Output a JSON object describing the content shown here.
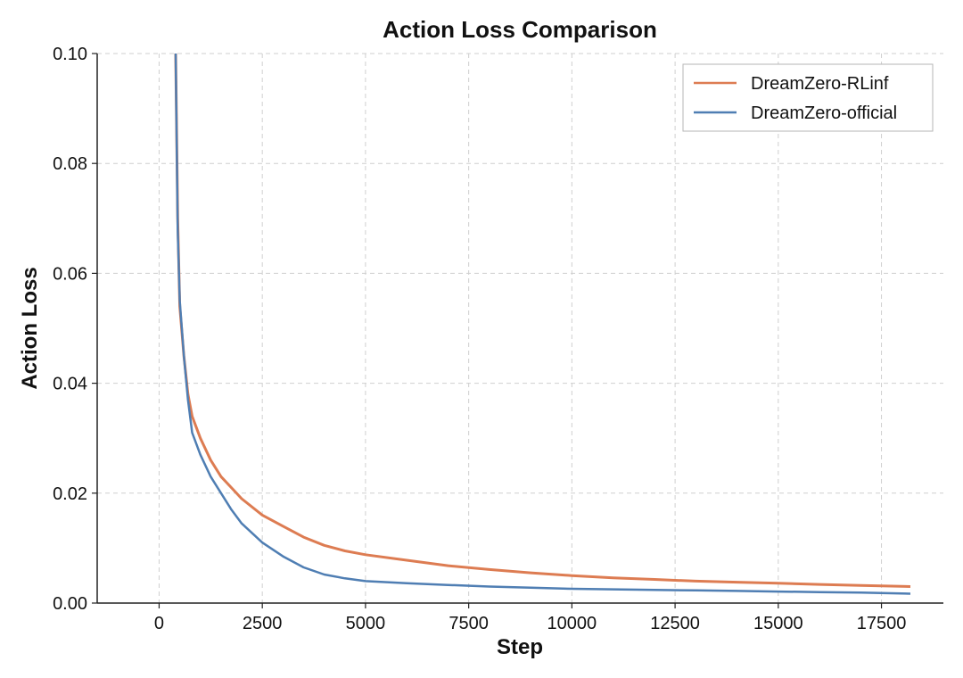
{
  "chart_data": {
    "type": "line",
    "title": "Action Loss Comparison",
    "xlabel": "Step",
    "ylabel": "Action Loss",
    "xlim": [
      -1500,
      19000
    ],
    "ylim": [
      0,
      0.1
    ],
    "xticks": [
      0,
      2500,
      5000,
      7500,
      10000,
      12500,
      15000,
      17500
    ],
    "xtick_labels": [
      "0",
      "2500",
      "5000",
      "7500",
      "10000",
      "12500",
      "15000",
      "17500"
    ],
    "yticks": [
      0,
      0.02,
      0.04,
      0.06,
      0.08,
      0.1
    ],
    "ytick_labels": [
      "0.00",
      "0.02",
      "0.04",
      "0.06",
      "0.08",
      "0.10"
    ],
    "grid": true,
    "legend_position": "top-right",
    "series": [
      {
        "name": "DreamZero-RLinf",
        "color": "#dd7c52",
        "x": [
          400,
          450,
          500,
          600,
          700,
          800,
          1000,
          1250,
          1500,
          1750,
          2000,
          2500,
          3000,
          3500,
          4000,
          4500,
          5000,
          6000,
          7000,
          8000,
          9000,
          10000,
          11000,
          12000,
          13000,
          14000,
          15000,
          16000,
          17000,
          18200
        ],
        "y": [
          0.1,
          0.07,
          0.054,
          0.045,
          0.038,
          0.034,
          0.03,
          0.026,
          0.023,
          0.021,
          0.019,
          0.016,
          0.014,
          0.012,
          0.0105,
          0.0095,
          0.0088,
          0.0078,
          0.0068,
          0.0061,
          0.0055,
          0.005,
          0.0046,
          0.0043,
          0.004,
          0.0038,
          0.0036,
          0.0034,
          0.0032,
          0.003
        ]
      },
      {
        "name": "DreamZero-official",
        "color": "#4f7eb3",
        "x": [
          400,
          450,
          500,
          600,
          700,
          800,
          1000,
          1250,
          1500,
          1750,
          2000,
          2500,
          3000,
          3500,
          4000,
          4500,
          5000,
          6000,
          7000,
          8000,
          9000,
          10000,
          11000,
          12000,
          13000,
          14000,
          15000,
          16000,
          17000,
          18200
        ],
        "y": [
          0.1,
          0.068,
          0.055,
          0.045,
          0.037,
          0.031,
          0.027,
          0.023,
          0.02,
          0.017,
          0.0145,
          0.011,
          0.0085,
          0.0065,
          0.0052,
          0.0045,
          0.004,
          0.0036,
          0.0033,
          0.003,
          0.0028,
          0.0026,
          0.0025,
          0.0024,
          0.0023,
          0.0022,
          0.0021,
          0.002,
          0.0019,
          0.0017
        ]
      }
    ]
  }
}
